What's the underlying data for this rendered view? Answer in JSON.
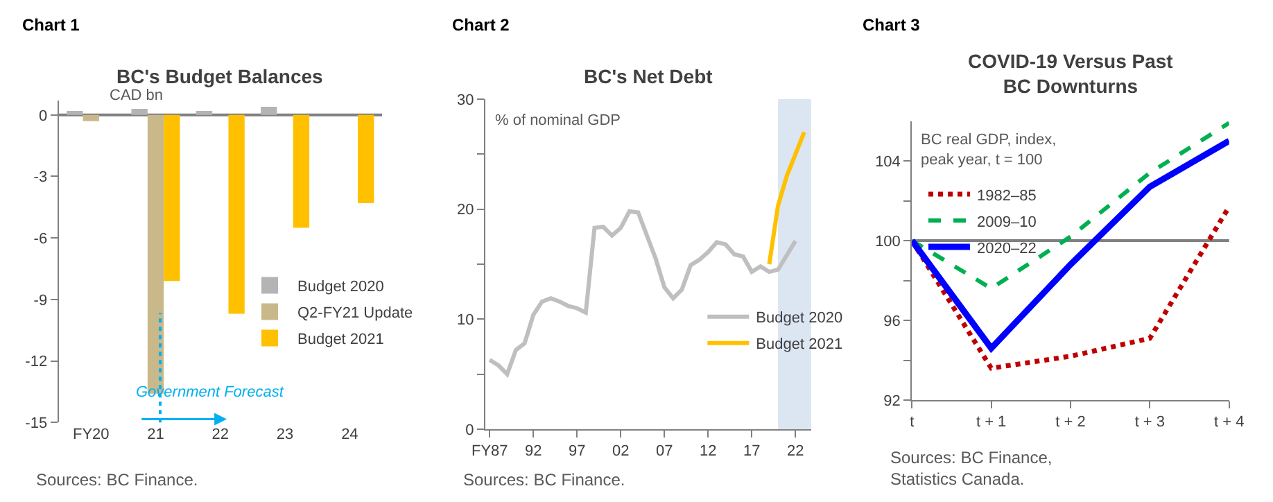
{
  "chart_data": [
    {
      "type": "bar",
      "title": "BC's Budget Balances",
      "categories": [
        "FY20",
        "21",
        "22",
        "23",
        "24"
      ],
      "series": [
        {
          "name": "Budget 2020",
          "color": "#b4b4b4",
          "values": [
            0.2,
            0.3,
            0.2,
            0.4,
            null
          ]
        },
        {
          "name": "Q2-FY21 Update",
          "color": "#c9b88a",
          "values": [
            -0.3,
            -13.6,
            null,
            null,
            null
          ]
        },
        {
          "name": "Budget 2021",
          "color": "#ffc000",
          "values": [
            null,
            -8.1,
            -9.7,
            -5.5,
            -4.3
          ]
        }
      ],
      "ylim": [
        -15,
        0.7
      ],
      "yticks": [
        -15,
        -12,
        -9,
        -6,
        -3,
        0
      ],
      "grid": false,
      "legend": "bottom right",
      "ref_lines": [
        {
          "axis": "x",
          "value": "21",
          "color": "#00b0f0",
          "line_style": "dotted"
        },
        {
          "axis": "y",
          "value": 0,
          "color": "#808080"
        }
      ],
      "annotations": [
        "Chart 1",
        "CAD bn",
        "Government Forecast",
        "Sources: BC Finance."
      ]
    },
    {
      "type": "line",
      "title": "BC's Net Debt",
      "series": [
        {
          "name": "Budget 2020",
          "color": "#bfbfbf",
          "x": [
            1987,
            1988,
            1989,
            1990,
            1991,
            1992,
            1993,
            1994,
            1995,
            1996,
            1997,
            1998,
            1999,
            2000,
            2001,
            2002,
            2003,
            2004,
            2005,
            2006,
            2007,
            2008,
            2009,
            2010,
            2011,
            2012,
            2013,
            2014,
            2015,
            2016,
            2017,
            2018,
            2019,
            2020,
            2021,
            2022
          ],
          "values": [
            6.3,
            5.8,
            5.0,
            7.2,
            7.8,
            10.4,
            11.6,
            11.9,
            11.6,
            11.2,
            11.0,
            10.6,
            18.3,
            18.4,
            17.6,
            18.3,
            19.8,
            19.7,
            17.6,
            15.5,
            12.9,
            11.9,
            12.7,
            14.9,
            15.4,
            16.1,
            17.0,
            16.8,
            15.9,
            15.7,
            14.3,
            14.8,
            14.3,
            14.5,
            15.8,
            17.1
          ]
        },
        {
          "name": "Budget 2021",
          "color": "#ffc000",
          "x": [
            2019,
            2020,
            2021,
            2022,
            2023
          ],
          "values": [
            15.0,
            20.3,
            23.0,
            25.0,
            27.0
          ]
        }
      ],
      "xlim": [
        1986.5,
        2023.8
      ],
      "xticks": [
        {
          "value": 1987,
          "label": "FY87"
        },
        {
          "value": 1992,
          "label": "92"
        },
        {
          "value": 1997,
          "label": "97"
        },
        {
          "value": 2002,
          "label": "02"
        },
        {
          "value": 2007,
          "label": "07"
        },
        {
          "value": 2012,
          "label": "12"
        },
        {
          "value": 2017,
          "label": "17"
        },
        {
          "value": 2022,
          "label": "22"
        }
      ],
      "ylim": [
        0,
        30
      ],
      "yticks": [
        0,
        {
          "value": 5,
          "label": null
        },
        10,
        {
          "value": 15,
          "label": null
        },
        20,
        {
          "value": 25,
          "label": null
        },
        30
      ],
      "bands": [
        {
          "axis": "x",
          "from": 2020,
          "to": 2023.8,
          "color": "#dce6f2"
        }
      ],
      "grid": false,
      "legend": "bottom right",
      "marker": "none",
      "annotations": [
        "Chart 2",
        "% of nominal GDP",
        "Sources: BC Finance."
      ]
    },
    {
      "type": "line",
      "title": "COVID-19 Versus Past\nBC Downturns",
      "categories": [
        "t",
        "t + 1",
        "t + 2",
        "t + 3",
        "t + 4"
      ],
      "series": [
        {
          "name": "1982–85",
          "color": "#c00000",
          "line_style": "dotted",
          "values": [
            100,
            93.6,
            94.2,
            95.1,
            101.7
          ]
        },
        {
          "name": "2009–10",
          "color": "#00b050",
          "line_style": "dashed",
          "values": [
            100,
            97.6,
            100.2,
            103.4,
            105.9
          ]
        },
        {
          "name": "2020–22",
          "color": "#0000ff",
          "line_style": "solid",
          "values": [
            100,
            94.6,
            98.8,
            102.7,
            105.0
          ]
        }
      ],
      "ylim": [
        92,
        106
      ],
      "yticks": [
        92,
        {
          "value": 94,
          "label": null
        },
        96,
        {
          "value": 98,
          "label": null
        },
        100,
        {
          "value": 102,
          "label": null
        },
        104
      ],
      "ref_lines": [
        {
          "axis": "y",
          "value": 100,
          "color": "#808080"
        }
      ],
      "grid": false,
      "legend": "top left",
      "marker": "none",
      "annotations": [
        "Chart 3",
        "BC real GDP, index,\npeak year, t = 100",
        "Sources: BC Finance,\nStatistics Canada."
      ]
    }
  ]
}
